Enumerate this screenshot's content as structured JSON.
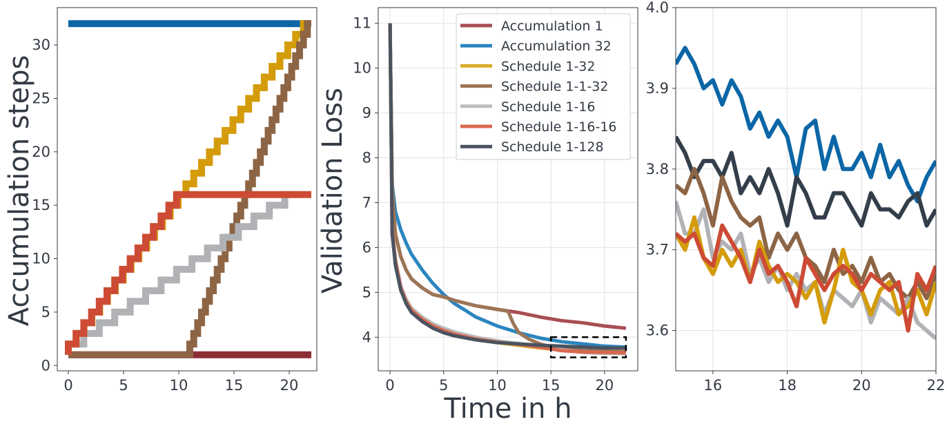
{
  "chart_data": [
    {
      "type": "line",
      "panel": "accumulation-schedule",
      "title": "",
      "xlabel": "",
      "ylabel": "Accumulation steps",
      "xlim": [
        -1,
        22.5
      ],
      "ylim": [
        -0.5,
        33.5
      ],
      "xticks": [
        "0",
        "5",
        "10",
        "15",
        "20"
      ],
      "yticks": [
        "0",
        "5",
        "10",
        "15",
        "20",
        "25",
        "30"
      ],
      "grid": false,
      "series": [
        {
          "name": "Accumulation 1",
          "color": "#8b2e35",
          "x": [
            0,
            22
          ],
          "y": [
            1,
            1
          ]
        },
        {
          "name": "Accumulation 32",
          "color": "#0b66a6",
          "x": [
            0,
            22
          ],
          "y": [
            32,
            32
          ]
        },
        {
          "name": "Schedule 1-32",
          "color": "#d49c0a",
          "x": [
            0,
            22
          ],
          "y": [
            1,
            32
          ],
          "stepped": true
        },
        {
          "name": "Schedule 1-1-32",
          "color": "#8d6545",
          "x": [
            0,
            11,
            22
          ],
          "y": [
            1,
            1,
            32
          ],
          "stepped": true
        },
        {
          "name": "Schedule 1-16",
          "color": "#b1b2b5",
          "x": [
            0,
            21
          ],
          "y": [
            1,
            16
          ],
          "stepped": true
        },
        {
          "name": "Schedule 1-16-16",
          "color": "#cd4b35",
          "x": [
            0,
            10.5,
            22
          ],
          "y": [
            1,
            16,
            16
          ],
          "stepped": true
        }
      ]
    },
    {
      "type": "line",
      "panel": "validation-loss",
      "title": "",
      "xlabel": "Time in h",
      "ylabel": "Validation Loss",
      "xlim": [
        -1.1,
        23.1
      ],
      "ylim": [
        3.25,
        11.35
      ],
      "xticks": [
        "0",
        "5",
        "10",
        "15",
        "20"
      ],
      "yticks": [
        "4",
        "5",
        "6",
        "7",
        "8",
        "9",
        "10",
        "11"
      ],
      "grid": true,
      "legend": "top-right",
      "zoom_box": {
        "x": [
          15,
          22
        ],
        "y": [
          3.55,
          4.0
        ]
      },
      "series": [
        {
          "name": "Accumulation 1",
          "color": "#a84e52",
          "x": [
            0,
            0.2,
            0.5,
            1,
            1.5,
            2,
            3,
            4,
            5,
            6,
            8,
            10,
            12,
            14,
            16,
            18,
            20,
            22
          ],
          "y": [
            11,
            7.3,
            6.3,
            5.8,
            5.5,
            5.3,
            5.1,
            4.95,
            4.9,
            4.82,
            4.7,
            4.62,
            4.55,
            4.45,
            4.37,
            4.32,
            4.25,
            4.2
          ]
        },
        {
          "name": "Accumulation 32",
          "color": "#2b85bf",
          "x": [
            0,
            0.2,
            0.5,
            1,
            1.5,
            2,
            3,
            4,
            5,
            6,
            7,
            8,
            10,
            12,
            14,
            16,
            18,
            20,
            22
          ],
          "y": [
            11,
            7.4,
            6.8,
            6.4,
            6.1,
            5.85,
            5.5,
            5.2,
            4.95,
            4.75,
            4.6,
            4.45,
            4.25,
            4.1,
            3.98,
            3.9,
            3.85,
            3.8,
            3.78
          ]
        },
        {
          "name": "Schedule 1-32",
          "color": "#dbaa2c",
          "x": [
            0,
            0.2,
            0.5,
            1,
            1.5,
            2,
            3,
            4,
            5,
            6,
            8,
            10,
            12,
            14,
            16,
            18,
            20,
            22
          ],
          "y": [
            11,
            6.4,
            5.7,
            5.1,
            4.8,
            4.6,
            4.4,
            4.25,
            4.15,
            4.08,
            3.95,
            3.88,
            3.82,
            3.76,
            3.72,
            3.69,
            3.67,
            3.65
          ]
        },
        {
          "name": "Schedule 1-1-32",
          "color": "#9c7556",
          "x": [
            0,
            0.2,
            0.5,
            1,
            1.5,
            2,
            3,
            4,
            5,
            6,
            8,
            10,
            11,
            11.5,
            12,
            13,
            14,
            15,
            16,
            18,
            20,
            22
          ],
          "y": [
            11,
            7.3,
            6.3,
            5.8,
            5.5,
            5.3,
            5.1,
            4.95,
            4.9,
            4.82,
            4.7,
            4.62,
            4.58,
            4.3,
            4.1,
            3.95,
            3.85,
            3.78,
            3.74,
            3.7,
            3.69,
            3.68
          ]
        },
        {
          "name": "Schedule 1-16",
          "color": "#bcbdbf",
          "x": [
            0,
            0.2,
            0.5,
            1,
            1.5,
            2,
            3,
            4,
            5,
            6,
            8,
            10,
            12,
            14,
            16,
            18,
            20,
            22
          ],
          "y": [
            11,
            6.4,
            5.75,
            5.15,
            4.85,
            4.65,
            4.45,
            4.3,
            4.2,
            4.12,
            4.0,
            3.92,
            3.86,
            3.8,
            3.72,
            3.66,
            3.64,
            3.63
          ]
        },
        {
          "name": "Schedule 1-16-16",
          "color": "#d8684f",
          "x": [
            0,
            0.2,
            0.5,
            1,
            1.5,
            2,
            3,
            4,
            5,
            6,
            8,
            10,
            12,
            14,
            16,
            18,
            20,
            22
          ],
          "y": [
            11,
            6.4,
            5.7,
            5.1,
            4.8,
            4.6,
            4.4,
            4.25,
            4.15,
            4.07,
            3.96,
            3.89,
            3.84,
            3.78,
            3.7,
            3.67,
            3.66,
            3.65
          ]
        },
        {
          "name": "Schedule 1-128",
          "color": "#4b5360",
          "x": [
            0,
            0.2,
            0.5,
            1,
            1.5,
            2,
            3,
            4,
            5,
            6,
            8,
            10,
            12,
            14,
            16,
            18,
            20,
            22
          ],
          "y": [
            11,
            6.3,
            5.6,
            5.05,
            4.75,
            4.55,
            4.35,
            4.2,
            4.1,
            4.03,
            3.94,
            3.88,
            3.85,
            3.82,
            3.8,
            3.78,
            3.76,
            3.76
          ]
        }
      ],
      "legend_entries": [
        "Accumulation 1",
        "Accumulation 32",
        "Schedule 1-32",
        "Schedule 1-1-32",
        "Schedule 1-16",
        "Schedule 1-16-16",
        "Schedule 1-128"
      ]
    },
    {
      "type": "line",
      "panel": "validation-loss-zoom",
      "title": "",
      "xlabel": "",
      "ylabel": "",
      "xlim": [
        15,
        22
      ],
      "ylim": [
        3.55,
        4.0
      ],
      "xticks": [
        "16",
        "18",
        "20",
        "22"
      ],
      "yticks": [
        "3.6",
        "3.7",
        "3.8",
        "3.9",
        "4.0"
      ],
      "grid": true,
      "series": [
        {
          "name": "Accumulation 32",
          "color": "#0b66a6",
          "x": [
            15,
            15.25,
            15.5,
            15.75,
            16,
            16.25,
            16.5,
            16.75,
            17,
            17.25,
            17.5,
            17.75,
            18,
            18.25,
            18.5,
            18.75,
            19,
            19.25,
            19.5,
            19.75,
            20,
            20.25,
            20.5,
            20.75,
            21,
            21.25,
            21.5,
            21.75,
            22
          ],
          "y": [
            3.93,
            3.95,
            3.93,
            3.9,
            3.91,
            3.88,
            3.91,
            3.89,
            3.85,
            3.87,
            3.84,
            3.86,
            3.84,
            3.79,
            3.85,
            3.86,
            3.8,
            3.84,
            3.8,
            3.8,
            3.82,
            3.79,
            3.83,
            3.79,
            3.81,
            3.78,
            3.76,
            3.79,
            3.81
          ]
        },
        {
          "name": "Schedule 1-128",
          "color": "#333e4a",
          "x": [
            15,
            15.25,
            15.5,
            15.75,
            16,
            16.25,
            16.5,
            16.75,
            17,
            17.25,
            17.5,
            17.75,
            18,
            18.25,
            18.5,
            18.75,
            19,
            19.25,
            19.5,
            19.75,
            20,
            20.25,
            20.5,
            20.75,
            21,
            21.25,
            21.5,
            21.75,
            22
          ],
          "y": [
            3.84,
            3.82,
            3.79,
            3.81,
            3.81,
            3.79,
            3.82,
            3.77,
            3.79,
            3.77,
            3.8,
            3.77,
            3.73,
            3.79,
            3.77,
            3.74,
            3.74,
            3.77,
            3.77,
            3.75,
            3.73,
            3.77,
            3.75,
            3.75,
            3.74,
            3.76,
            3.77,
            3.73,
            3.75
          ]
        },
        {
          "name": "Schedule 1-1-32",
          "color": "#8d6545",
          "x": [
            15,
            15.25,
            15.5,
            15.75,
            16,
            16.25,
            16.5,
            16.75,
            17,
            17.25,
            17.5,
            17.75,
            18,
            18.25,
            18.5,
            18.75,
            19,
            19.25,
            19.5,
            19.75,
            20,
            20.25,
            20.5,
            20.75,
            21,
            21.25,
            21.5,
            21.75,
            22
          ],
          "y": [
            3.78,
            3.77,
            3.8,
            3.77,
            3.73,
            3.79,
            3.76,
            3.74,
            3.73,
            3.74,
            3.69,
            3.72,
            3.7,
            3.72,
            3.69,
            3.68,
            3.66,
            3.7,
            3.67,
            3.68,
            3.66,
            3.69,
            3.66,
            3.67,
            3.65,
            3.64,
            3.66,
            3.64,
            3.67
          ]
        },
        {
          "name": "Schedule 1-16",
          "color": "#b1b2b5",
          "x": [
            15,
            15.25,
            15.5,
            15.75,
            16,
            16.25,
            16.5,
            16.75,
            17,
            17.25,
            17.5,
            17.75,
            18,
            18.25,
            18.5,
            18.75,
            19,
            19.25,
            19.5,
            19.75,
            20,
            20.25,
            20.5,
            20.75,
            21,
            21.25,
            21.5,
            21.75,
            22
          ],
          "y": [
            3.76,
            3.72,
            3.72,
            3.75,
            3.69,
            3.71,
            3.7,
            3.72,
            3.67,
            3.69,
            3.66,
            3.68,
            3.65,
            3.67,
            3.65,
            3.66,
            3.62,
            3.65,
            3.64,
            3.63,
            3.65,
            3.61,
            3.64,
            3.63,
            3.62,
            3.64,
            3.61,
            3.6,
            3.59
          ]
        },
        {
          "name": "Schedule 1-32",
          "color": "#d49c0a",
          "x": [
            15,
            15.25,
            15.5,
            15.75,
            16,
            16.25,
            16.5,
            16.75,
            17,
            17.25,
            17.5,
            17.75,
            18,
            18.25,
            18.5,
            18.75,
            19,
            19.25,
            19.5,
            19.75,
            20,
            20.25,
            20.5,
            20.75,
            21,
            21.25,
            21.5,
            21.75,
            22
          ],
          "y": [
            3.72,
            3.7,
            3.74,
            3.69,
            3.67,
            3.7,
            3.68,
            3.7,
            3.66,
            3.71,
            3.68,
            3.66,
            3.67,
            3.66,
            3.64,
            3.66,
            3.61,
            3.65,
            3.7,
            3.66,
            3.65,
            3.62,
            3.65,
            3.66,
            3.62,
            3.63,
            3.65,
            3.62,
            3.66
          ]
        },
        {
          "name": "Schedule 1-16-16",
          "color": "#cd4b35",
          "x": [
            15,
            15.25,
            15.5,
            15.75,
            16,
            16.25,
            16.5,
            16.75,
            17,
            17.25,
            17.5,
            17.75,
            18,
            18.25,
            18.5,
            18.75,
            19,
            19.25,
            19.5,
            19.75,
            20,
            20.25,
            20.5,
            20.75,
            21,
            21.25,
            21.5,
            21.75,
            22
          ],
          "y": [
            3.72,
            3.71,
            3.72,
            3.69,
            3.68,
            3.73,
            3.71,
            3.69,
            3.66,
            3.7,
            3.67,
            3.68,
            3.66,
            3.63,
            3.69,
            3.67,
            3.65,
            3.67,
            3.68,
            3.67,
            3.65,
            3.67,
            3.66,
            3.65,
            3.66,
            3.6,
            3.67,
            3.65,
            3.68
          ]
        }
      ]
    }
  ]
}
